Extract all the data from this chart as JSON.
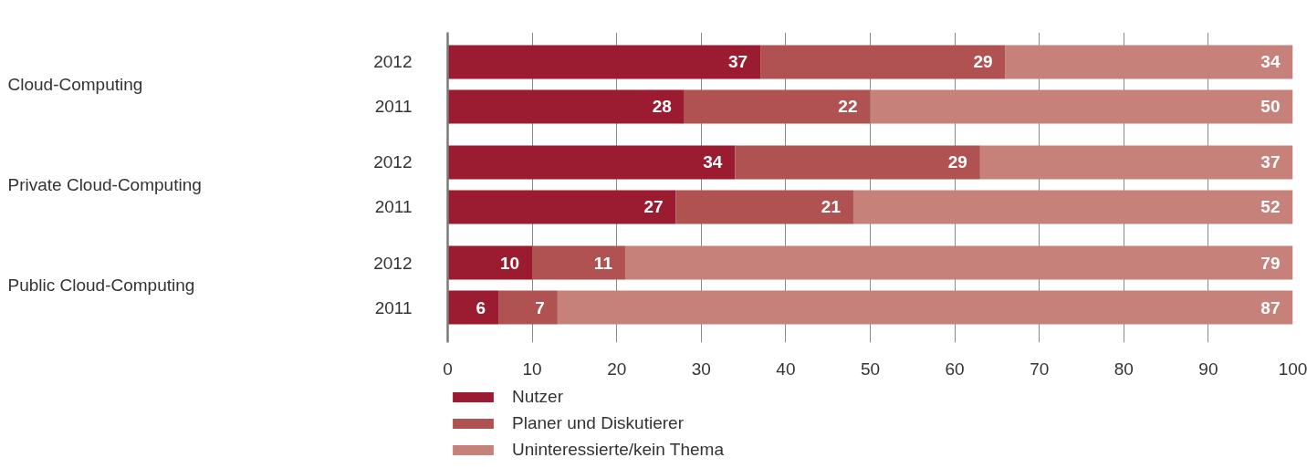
{
  "chart_data": {
    "type": "bar",
    "orientation": "horizontal",
    "stacked": true,
    "categories": [
      "2012",
      "2011",
      "2012",
      "2011",
      "2012",
      "2011"
    ],
    "annotations": [
      "Cloud-Computing",
      "Private Cloud-Computing",
      "Public Cloud-Computing"
    ],
    "series": [
      {
        "name": "Nutzer",
        "color": "#9b1b30",
        "values": [
          37,
          28,
          34,
          27,
          10,
          6
        ]
      },
      {
        "name": "Planer und Diskutierer",
        "color": "#b05252",
        "values": [
          29,
          22,
          29,
          21,
          11,
          7
        ]
      },
      {
        "name": "Uninteressierte/kein Thema",
        "color": "#c6827a",
        "values": [
          34,
          50,
          37,
          52,
          79,
          87
        ]
      }
    ],
    "xlim": [
      0,
      100
    ],
    "xticks": [
      0,
      10,
      20,
      30,
      40,
      50,
      60,
      70,
      80,
      90,
      100
    ],
    "data_labels": true,
    "grid": "x",
    "legend": "bottom left"
  }
}
